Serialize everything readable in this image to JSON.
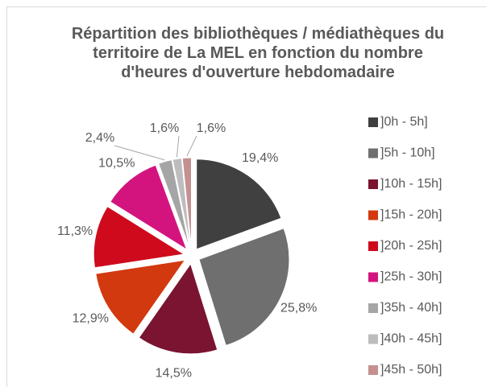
{
  "chart_data": {
    "type": "pie",
    "title": "Répartition des bibliothèques / médiathèques du territoire de La MEL en fonction du nombre d'heures d'ouverture hebdomadaire",
    "categories": [
      "]0h - 5h]",
      "]5h - 10h]",
      "]10h - 15h]",
      "]15h - 20h]",
      "]20h - 25h]",
      "]25h - 30h]",
      "]35h - 40h]",
      "]40h - 45h]",
      "]45h - 50h]"
    ],
    "values": [
      19.4,
      25.8,
      14.5,
      12.9,
      11.3,
      10.5,
      2.4,
      1.6,
      1.6
    ],
    "value_labels": [
      "19,4%",
      "25,8%",
      "14,5%",
      "12,9%",
      "11,3%",
      "10,5%",
      "2,4%",
      "1,6%",
      "1,6%"
    ],
    "colors": [
      "#404040",
      "#6f6f6f",
      "#7a1431",
      "#d2390f",
      "#cf0a1d",
      "#d4147e",
      "#a5a5a5",
      "#bdbdbd",
      "#c49090"
    ],
    "legend": "right"
  }
}
